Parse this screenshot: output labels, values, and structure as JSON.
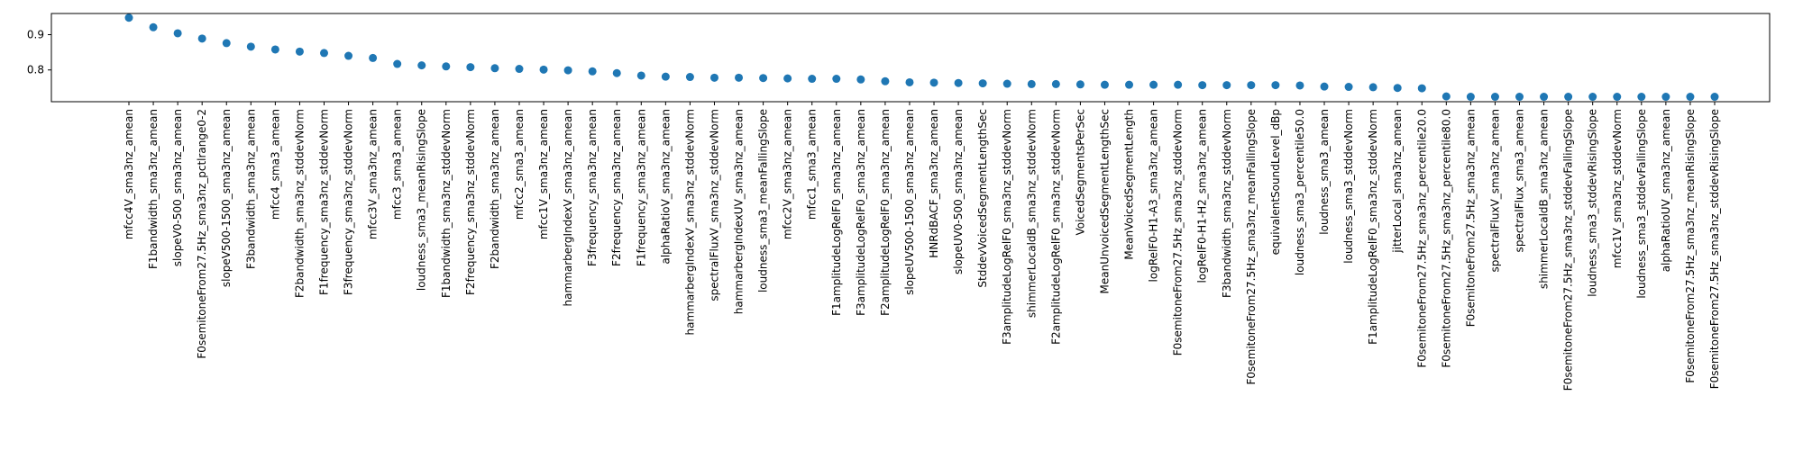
{
  "chart_data": {
    "type": "scatter",
    "title": "",
    "xlabel": "",
    "ylabel": "",
    "ylim": [
      0.71,
      0.96
    ],
    "yticks": [
      0.8,
      0.9
    ],
    "grid": false,
    "legend": "none",
    "marker_color": "#1f77b4",
    "categories": [
      "mfcc4V_sma3nz_amean",
      "F1bandwidth_sma3nz_amean",
      "slopeV0-500_sma3nz_amean",
      "F0semitoneFrom27.5Hz_sma3nz_pctlrange0-2",
      "slopeV500-1500_sma3nz_amean",
      "F3bandwidth_sma3nz_amean",
      "mfcc4_sma3_amean",
      "F2bandwidth_sma3nz_stddevNorm",
      "F1frequency_sma3nz_stddevNorm",
      "F3frequency_sma3nz_stddevNorm",
      "mfcc3V_sma3nz_amean",
      "mfcc3_sma3_amean",
      "loudness_sma3_meanRisingSlope",
      "F1bandwidth_sma3nz_stddevNorm",
      "F2frequency_sma3nz_stddevNorm",
      "F2bandwidth_sma3nz_amean",
      "mfcc2_sma3_amean",
      "mfcc1V_sma3nz_amean",
      "hammarbergIndexV_sma3nz_amean",
      "F3frequency_sma3nz_amean",
      "F2frequency_sma3nz_amean",
      "F1frequency_sma3nz_amean",
      "alphaRatioV_sma3nz_amean",
      "hammarbergIndexV_sma3nz_stddevNorm",
      "spectralFluxV_sma3nz_stddevNorm",
      "hammarbergIndexUV_sma3nz_amean",
      "loudness_sma3_meanFallingSlope",
      "mfcc2V_sma3nz_amean",
      "mfcc1_sma3_amean",
      "F1amplitudeLogRelF0_sma3nz_amean",
      "F3amplitudeLogRelF0_sma3nz_amean",
      "F2amplitudeLogRelF0_sma3nz_amean",
      "slopeUV500-1500_sma3nz_amean",
      "HNRdBACF_sma3nz_amean",
      "slopeUV0-500_sma3nz_amean",
      "StddevVoicedSegmentLengthSec",
      "F3amplitudeLogRelF0_sma3nz_stddevNorm",
      "shimmerLocaldB_sma3nz_stddevNorm",
      "F2amplitudeLogRelF0_sma3nz_stddevNorm",
      "VoicedSegmentsPerSec",
      "MeanUnvoicedSegmentLengthSec",
      "MeanVoicedSegmentLength",
      "logRelF0-H1-A3_sma3nz_amean",
      "F0semitoneFrom27.5Hz_sma3nz_stddevNorm",
      "logRelF0-H1-H2_sma3nz_amean",
      "F3bandwidth_sma3nz_stddevNorm",
      "F0semitoneFrom27.5Hz_sma3nz_meanFallingSlope",
      "equivalentSoundLevel_dBp",
      "loudness_sma3_percentile50.0",
      "loudness_sma3_amean",
      "loudness_sma3_stddevNorm",
      "F1amplitudeLogRelF0_sma3nz_stddevNorm",
      "jitterLocal_sma3nz_amean",
      "F0semitoneFrom27.5Hz_sma3nz_percentile20.0",
      "F0semitoneFrom27.5Hz_sma3nz_percentile80.0",
      "F0semitoneFrom27.5Hz_sma3nz_amean",
      "spectralFluxV_sma3nz_amean",
      "spectralFlux_sma3_amean",
      "shimmerLocaldB_sma3nz_amean",
      "F0semitoneFrom27.5Hz_sma3nz_stddevFallingSlope",
      "loudness_sma3_stddevRisingSlope",
      "mfcc1V_sma3nz_stddevNorm",
      "loudness_sma3_stddevFallingSlope",
      "alphaRatioUV_sma3nz_amean",
      "F0semitoneFrom27.5Hz_sma3nz_meanRisingSlope",
      "F0semitoneFrom27.5Hz_sma3nz_stddevRisingSlope"
    ],
    "values": [
      0.948,
      0.921,
      0.904,
      0.889,
      0.876,
      0.866,
      0.858,
      0.852,
      0.848,
      0.84,
      0.834,
      0.817,
      0.813,
      0.81,
      0.808,
      0.805,
      0.803,
      0.801,
      0.799,
      0.796,
      0.791,
      0.784,
      0.781,
      0.78,
      0.778,
      0.778,
      0.777,
      0.776,
      0.775,
      0.775,
      0.773,
      0.768,
      0.765,
      0.764,
      0.763,
      0.762,
      0.761,
      0.76,
      0.76,
      0.759,
      0.758,
      0.758,
      0.758,
      0.758,
      0.757,
      0.757,
      0.757,
      0.757,
      0.756,
      0.753,
      0.752,
      0.751,
      0.749,
      0.748,
      0.725,
      0.724,
      0.724,
      0.724,
      0.724,
      0.724,
      0.724,
      0.724,
      0.724,
      0.724,
      0.724,
      0.724
    ]
  }
}
